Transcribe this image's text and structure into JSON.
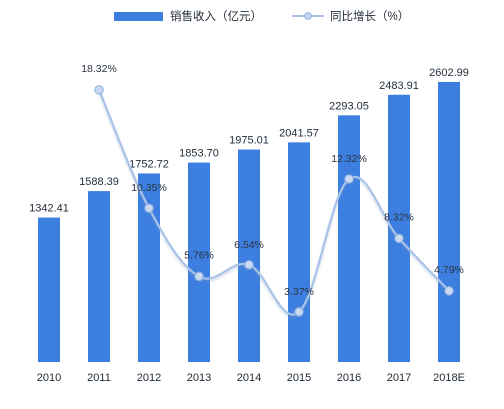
{
  "chart_data": {
    "type": "bar",
    "title": "",
    "xlabel": "",
    "ylabel": "",
    "categories": [
      "2010",
      "2011",
      "2012",
      "2013",
      "2014",
      "2015",
      "2016",
      "2017",
      "2018E"
    ],
    "series": [
      {
        "name": "销售收入（亿元）",
        "type": "bar",
        "axis": "left",
        "values": [
          1342.41,
          1588.39,
          1752.72,
          1853.7,
          1975.01,
          2041.57,
          2293.05,
          2483.91,
          2602.99
        ],
        "labels": [
          "1342.41",
          "1588.39",
          "1752.72",
          "1853.70",
          "1975.01",
          "2041.57",
          "2293.05",
          "2483.91",
          "2602.99"
        ]
      },
      {
        "name": "同比增长（%）",
        "type": "line",
        "axis": "right",
        "values": [
          null,
          18.32,
          10.35,
          5.76,
          6.54,
          3.37,
          12.32,
          8.32,
          4.79
        ],
        "labels": [
          "",
          "18.32%",
          "10.35%",
          "5.76%",
          "6.54%",
          "3.37%",
          "12.32%",
          "8.32%",
          "4.79%"
        ]
      }
    ],
    "ylim_left": [
      0,
      2900
    ],
    "ylim_right": [
      0,
      21
    ],
    "grid": false,
    "legend_position": "top-center",
    "colors": {
      "bar": "#3d7fe0",
      "line": "#a9c3e8",
      "marker_fill": "#c9daf1",
      "marker_stroke": "#8fb0df"
    }
  }
}
